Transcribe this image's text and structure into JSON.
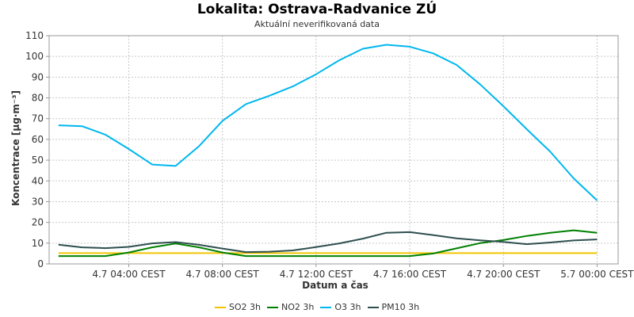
{
  "chart_data": {
    "type": "line",
    "title": "Lokalita: Ostrava-Radvanice ZÚ",
    "subtitle": "Aktuální neverifikovaná data",
    "xlabel": "Datum a čas",
    "ylabel": "Koncentrace [µg·m⁻³]",
    "ylim": [
      0,
      110
    ],
    "yticks": [
      0,
      10,
      20,
      30,
      40,
      50,
      60,
      70,
      80,
      90,
      100,
      110
    ],
    "xlim": [
      0.6,
      24.9
    ],
    "xticks": [
      {
        "x": 4,
        "label": "4.7 04:00 CEST"
      },
      {
        "x": 8,
        "label": "4.7 08:00 CEST"
      },
      {
        "x": 12,
        "label": "4.7 12:00 CEST"
      },
      {
        "x": 16,
        "label": "4.7 16:00 CEST"
      },
      {
        "x": 20,
        "label": "4.7 20:00 CEST"
      },
      {
        "x": 24,
        "label": "5.7 00:00 CEST"
      }
    ],
    "grid": true,
    "legend_position": "bottom",
    "x": [
      1,
      2,
      3,
      4,
      5,
      6,
      7,
      8,
      9,
      10,
      11,
      12,
      13,
      14,
      15,
      16,
      17,
      18,
      19,
      20,
      21,
      22,
      23,
      24
    ],
    "series": [
      {
        "name": "SO2 3h",
        "color": "#f2c500",
        "values": [
          5.2,
          5.2,
          5.2,
          5.2,
          5.2,
          5.2,
          5.2,
          5.2,
          5.2,
          5.2,
          5.2,
          5.2,
          5.2,
          5.2,
          5.2,
          5.2,
          5.2,
          5.2,
          5.2,
          5.2,
          5.2,
          5.2,
          5.2,
          5.2
        ]
      },
      {
        "name": "NO2 3h",
        "color": "#008000",
        "values": [
          3.8,
          3.8,
          3.8,
          5.5,
          8.0,
          9.8,
          8.0,
          5.5,
          3.8,
          3.8,
          3.8,
          3.8,
          3.8,
          3.8,
          3.8,
          3.8,
          5.0,
          7.5,
          10.0,
          11.5,
          13.5,
          15.0,
          16.2,
          15.0
        ]
      },
      {
        "name": "O3 3h",
        "color": "#00b7ee",
        "values": [
          66.8,
          66.4,
          62.3,
          55.4,
          47.9,
          47.2,
          56.7,
          68.9,
          77.0,
          81.0,
          85.5,
          91.4,
          98.2,
          103.7,
          105.6,
          104.7,
          101.5,
          95.9,
          86.6,
          76.0,
          64.9,
          54.1,
          41.2,
          30.6
        ]
      },
      {
        "name": "PM10 3h",
        "color": "#2f4f4f",
        "values": [
          9.3,
          8.0,
          7.6,
          8.2,
          9.9,
          10.5,
          9.2,
          7.4,
          5.7,
          5.9,
          6.5,
          8.1,
          9.9,
          12.2,
          15.0,
          15.3,
          13.9,
          12.3,
          11.4,
          10.6,
          9.5,
          10.3,
          11.3,
          11.8
        ]
      }
    ]
  }
}
